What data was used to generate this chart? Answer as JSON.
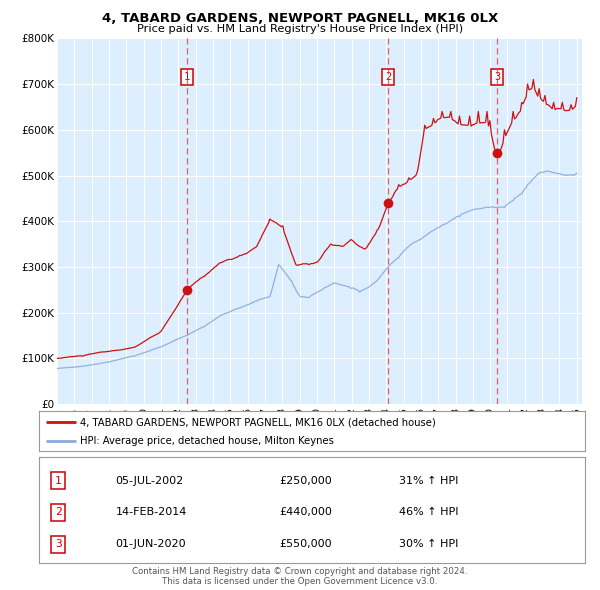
{
  "title": "4, TABARD GARDENS, NEWPORT PAGNELL, MK16 0LX",
  "subtitle": "Price paid vs. HM Land Registry's House Price Index (HPI)",
  "legend_line1": "4, TABARD GARDENS, NEWPORT PAGNELL, MK16 0LX (detached house)",
  "legend_line2": "HPI: Average price, detached house, Milton Keynes",
  "footer_line1": "Contains HM Land Registry data © Crown copyright and database right 2024.",
  "footer_line2": "This data is licensed under the Open Government Licence v3.0.",
  "x_start": 1995,
  "x_end": 2025,
  "y_min": 0,
  "y_max": 800000,
  "y_ticks": [
    0,
    100000,
    200000,
    300000,
    400000,
    500000,
    600000,
    700000,
    800000
  ],
  "y_tick_labels": [
    "£0",
    "£100K",
    "£200K",
    "£300K",
    "£400K",
    "£500K",
    "£600K",
    "£700K",
    "£800K"
  ],
  "x_ticks": [
    1995,
    1996,
    1997,
    1998,
    1999,
    2000,
    2001,
    2002,
    2003,
    2004,
    2005,
    2006,
    2007,
    2008,
    2009,
    2010,
    2011,
    2012,
    2013,
    2014,
    2015,
    2016,
    2017,
    2018,
    2019,
    2020,
    2021,
    2022,
    2023,
    2024,
    2025
  ],
  "plot_bg_color": "#ddeeff",
  "grid_color": "#ffffff",
  "line1_color": "#cc1111",
  "line2_color": "#88aadd",
  "dashed_line_color": "#dd3333",
  "transactions": [
    {
      "id": 1,
      "date": "05-JUL-2002",
      "price": 250000,
      "pct": "31%",
      "x": 2002.5
    },
    {
      "id": 2,
      "date": "14-FEB-2014",
      "price": 440000,
      "pct": "46%",
      "x": 2014.12
    },
    {
      "id": 3,
      "date": "01-JUN-2020",
      "price": 550000,
      "pct": "30%",
      "x": 2020.42
    }
  ]
}
